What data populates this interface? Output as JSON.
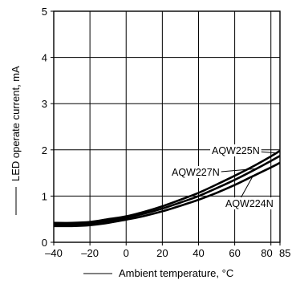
{
  "chart_data": {
    "type": "line",
    "title": "",
    "xlabel": "Ambient temperature, °C",
    "ylabel": "LED operate current, mA",
    "xlim": [
      -40,
      85
    ],
    "ylim": [
      0,
      5
    ],
    "grid": true,
    "x_ticks": [
      -40,
      -20,
      0,
      20,
      40,
      60,
      80,
      85
    ],
    "x_tick_labels": [
      "–40",
      "–20",
      "0",
      "20",
      "40",
      "60",
      "80",
      "85"
    ],
    "y_ticks": [
      0,
      1,
      2,
      3,
      4,
      5
    ],
    "y_tick_labels": [
      "0",
      "1",
      "2",
      "3",
      "4",
      "5"
    ],
    "series": [
      {
        "name": "AQW225N",
        "x": [
          -40,
          -30,
          -20,
          -10,
          0,
          10,
          20,
          30,
          40,
          50,
          60,
          70,
          80,
          85
        ],
        "values": [
          0.42,
          0.42,
          0.44,
          0.5,
          0.56,
          0.66,
          0.78,
          0.92,
          1.07,
          1.25,
          1.44,
          1.64,
          1.86,
          1.98
        ]
      },
      {
        "name": "AQW227N",
        "x": [
          -40,
          -30,
          -20,
          -10,
          0,
          10,
          20,
          30,
          40,
          50,
          60,
          70,
          80,
          85
        ],
        "values": [
          0.38,
          0.38,
          0.41,
          0.46,
          0.53,
          0.62,
          0.73,
          0.86,
          1.0,
          1.17,
          1.35,
          1.55,
          1.76,
          1.87
        ]
      },
      {
        "name": "AQW224N",
        "x": [
          -40,
          -30,
          -20,
          -10,
          0,
          10,
          20,
          30,
          40,
          50,
          60,
          70,
          80,
          85
        ],
        "values": [
          0.35,
          0.35,
          0.37,
          0.42,
          0.49,
          0.57,
          0.67,
          0.79,
          0.92,
          1.07,
          1.24,
          1.43,
          1.62,
          1.72
        ]
      }
    ]
  }
}
